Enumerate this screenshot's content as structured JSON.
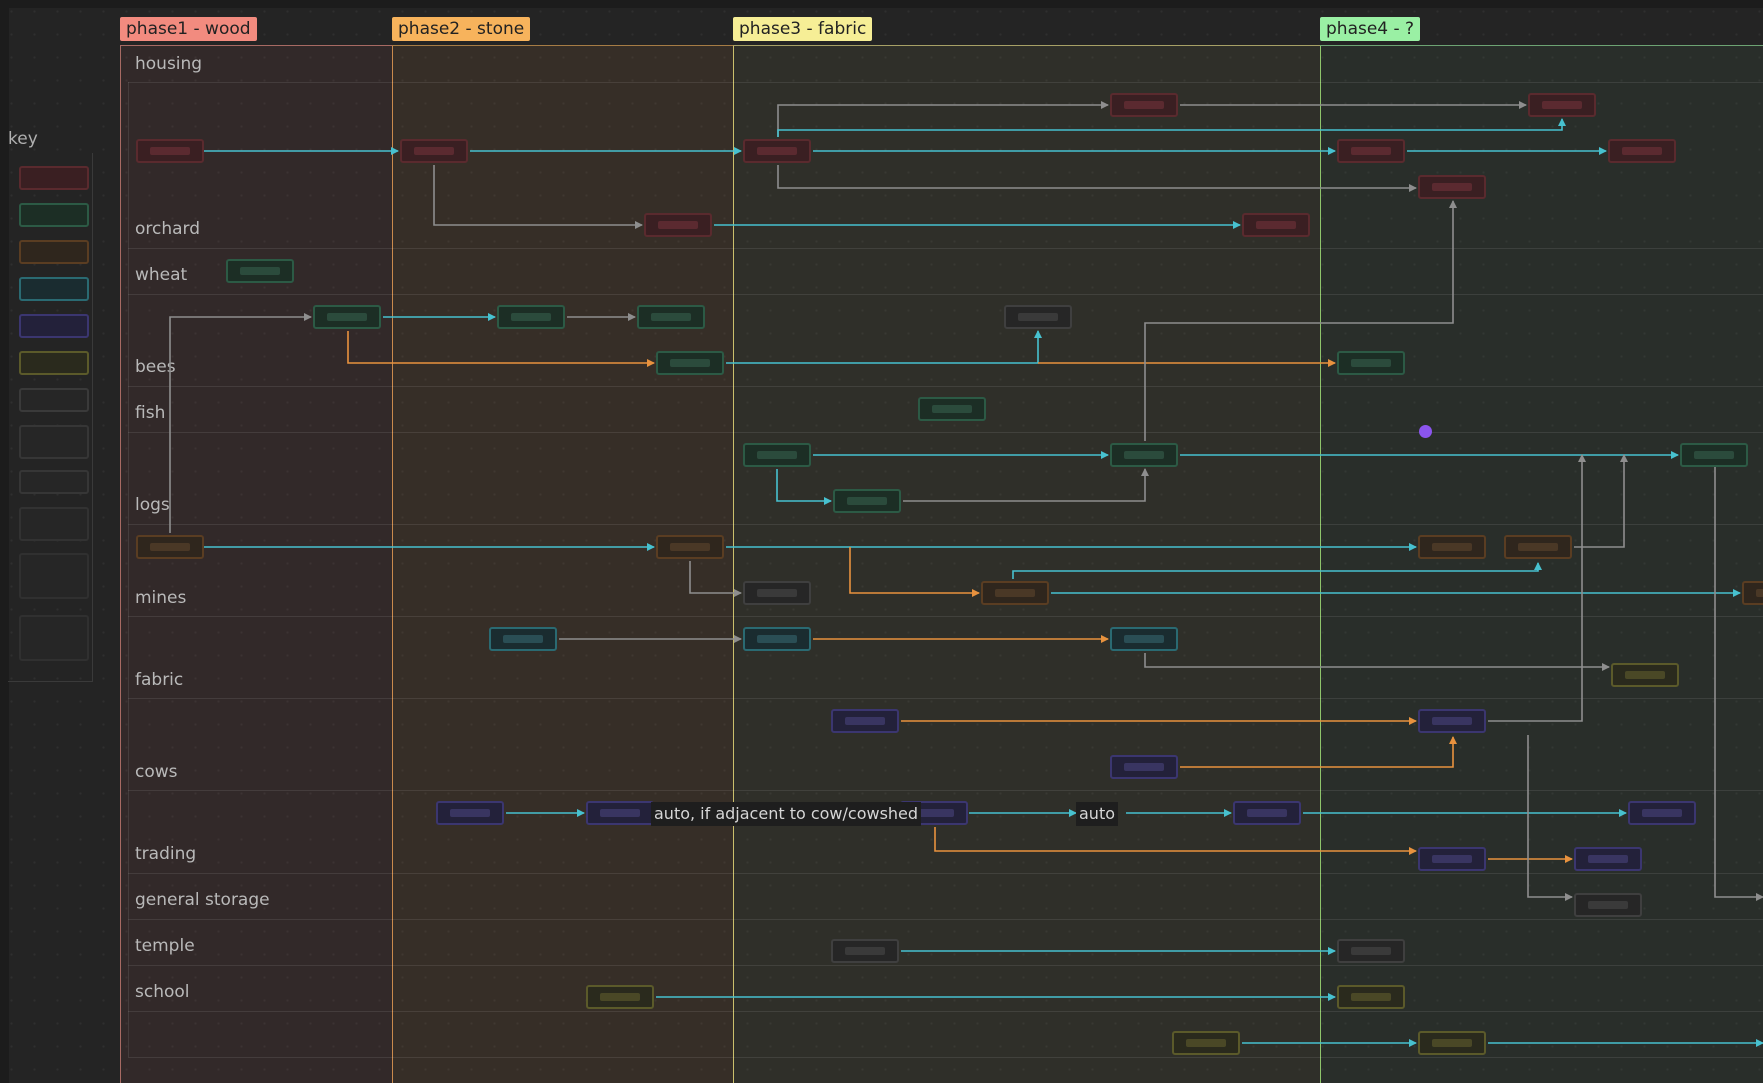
{
  "colors": {
    "teal": "#47c1cf",
    "orange": "#e8923e",
    "gray": "#8e8e8e",
    "cursor": "#8b55ee",
    "phase1": "#f28b7f",
    "phase2": "#f7b35c",
    "phase3": "#f6ee96",
    "phase4": "#9af0a4"
  },
  "phases": [
    {
      "label": "phase1 - wood"
    },
    {
      "label": "phase2 - stone"
    },
    {
      "label": "phase3 - fabric"
    },
    {
      "label": "phase4 - ?"
    }
  ],
  "key": {
    "title": "key"
  },
  "lanes": [
    "housing",
    "orchard",
    "wheat",
    "bees",
    "fish",
    "logs",
    "mines",
    "fabric",
    "cows",
    "trading",
    "general storage",
    "temple",
    "school"
  ],
  "edge_labels": [
    "auto, if adjacent to cow/cowshed",
    "auto"
  ],
  "node_categories": [
    "red",
    "green",
    "brown",
    "teal",
    "purple",
    "olive",
    "gray"
  ],
  "nodes": [
    {
      "id": "h1",
      "lane": "housing",
      "cat": "red"
    },
    {
      "id": "h2",
      "lane": "housing",
      "cat": "red"
    },
    {
      "id": "h3",
      "lane": "housing",
      "cat": "red"
    },
    {
      "id": "h4",
      "lane": "housing",
      "cat": "red"
    },
    {
      "id": "h5",
      "lane": "housing",
      "cat": "red"
    },
    {
      "id": "h6",
      "lane": "housing",
      "cat": "red"
    },
    {
      "id": "h7",
      "lane": "housing",
      "cat": "red"
    },
    {
      "id": "h8",
      "lane": "housing",
      "cat": "red"
    },
    {
      "id": "o1",
      "lane": "orchard",
      "cat": "red"
    },
    {
      "id": "o2",
      "lane": "orchard",
      "cat": "red"
    },
    {
      "id": "w1",
      "lane": "wheat",
      "cat": "green"
    },
    {
      "id": "b1",
      "lane": "bees",
      "cat": "green"
    },
    {
      "id": "b2",
      "lane": "bees",
      "cat": "green"
    },
    {
      "id": "b3",
      "lane": "bees",
      "cat": "green"
    },
    {
      "id": "b4",
      "lane": "bees",
      "cat": "gray"
    },
    {
      "id": "b5",
      "lane": "bees",
      "cat": "green"
    },
    {
      "id": "b6",
      "lane": "bees",
      "cat": "green"
    },
    {
      "id": "f1",
      "lane": "fish",
      "cat": "green"
    },
    {
      "id": "l1",
      "lane": "logs",
      "cat": "green"
    },
    {
      "id": "l2",
      "lane": "logs",
      "cat": "green"
    },
    {
      "id": "l3",
      "lane": "logs",
      "cat": "green"
    },
    {
      "id": "l4",
      "lane": "logs",
      "cat": "green"
    },
    {
      "id": "m1",
      "lane": "mines",
      "cat": "brown"
    },
    {
      "id": "m2",
      "lane": "mines",
      "cat": "brown"
    },
    {
      "id": "m3",
      "lane": "mines",
      "cat": "brown"
    },
    {
      "id": "m4",
      "lane": "mines",
      "cat": "brown"
    },
    {
      "id": "m5",
      "lane": "mines",
      "cat": "gray"
    },
    {
      "id": "m6",
      "lane": "mines",
      "cat": "brown"
    },
    {
      "id": "m7",
      "lane": "mines",
      "cat": "brown"
    },
    {
      "id": "fa1",
      "lane": "fabric",
      "cat": "teal"
    },
    {
      "id": "fa2",
      "lane": "fabric",
      "cat": "teal"
    },
    {
      "id": "fa3",
      "lane": "fabric",
      "cat": "teal"
    },
    {
      "id": "fa4",
      "lane": "fabric",
      "cat": "olive"
    },
    {
      "id": "c1",
      "lane": "cows",
      "cat": "purple"
    },
    {
      "id": "c2",
      "lane": "cows",
      "cat": "purple"
    },
    {
      "id": "c3",
      "lane": "cows",
      "cat": "purple"
    },
    {
      "id": "t1",
      "lane": "trading",
      "cat": "purple"
    },
    {
      "id": "t2",
      "lane": "trading",
      "cat": "purple"
    },
    {
      "id": "t3",
      "lane": "trading",
      "cat": "purple"
    },
    {
      "id": "t4",
      "lane": "trading",
      "cat": "purple"
    },
    {
      "id": "t5",
      "lane": "trading",
      "cat": "purple"
    },
    {
      "id": "t6",
      "lane": "trading",
      "cat": "purple"
    },
    {
      "id": "t7",
      "lane": "trading",
      "cat": "purple"
    },
    {
      "id": "g1",
      "lane": "general storage",
      "cat": "gray"
    },
    {
      "id": "te1",
      "lane": "temple",
      "cat": "gray"
    },
    {
      "id": "te2",
      "lane": "temple",
      "cat": "gray"
    },
    {
      "id": "s1",
      "lane": "school",
      "cat": "olive"
    },
    {
      "id": "s2",
      "lane": "school",
      "cat": "olive"
    },
    {
      "id": "x1",
      "lane": "school",
      "cat": "olive"
    },
    {
      "id": "x2",
      "lane": "school",
      "cat": "olive"
    }
  ],
  "edges": [
    {
      "from": "h1",
      "to": "h2",
      "color": "teal"
    },
    {
      "from": "h2",
      "to": "h3",
      "color": "teal"
    },
    {
      "from": "h3",
      "to": "h4",
      "color": "teal"
    },
    {
      "from": "h4",
      "to": "h5",
      "color": "teal"
    },
    {
      "from": "h3",
      "to": "h6",
      "color": "gray"
    },
    {
      "from": "h6",
      "to": "h7",
      "color": "gray"
    },
    {
      "from": "h3",
      "to": "h7",
      "color": "teal"
    },
    {
      "from": "h3",
      "to": "h8",
      "color": "gray"
    },
    {
      "from": "h2",
      "to": "o1",
      "color": "gray"
    },
    {
      "from": "o1",
      "to": "o2",
      "color": "teal"
    },
    {
      "from": "b1",
      "to": "b2",
      "color": "teal"
    },
    {
      "from": "b2",
      "to": "b3",
      "color": "gray"
    },
    {
      "from": "b1",
      "to": "b5",
      "color": "orange"
    },
    {
      "from": "b5",
      "to": "b4",
      "color": "teal"
    },
    {
      "from": "b5",
      "to": "b6",
      "color": "orange"
    },
    {
      "from": "m1",
      "to": "b1",
      "color": "gray"
    },
    {
      "from": "l1",
      "to": "l3",
      "color": "teal"
    },
    {
      "from": "l1",
      "to": "l2",
      "color": "teal"
    },
    {
      "from": "l2",
      "to": "l3",
      "color": "gray"
    },
    {
      "from": "l3",
      "to": "l4",
      "color": "teal"
    },
    {
      "from": "l3",
      "to": "h8",
      "color": "gray"
    },
    {
      "from": "m1",
      "to": "m2",
      "color": "teal"
    },
    {
      "from": "m2",
      "to": "m3",
      "color": "teal"
    },
    {
      "from": "m2",
      "to": "m5",
      "color": "gray"
    },
    {
      "from": "m2",
      "to": "m6",
      "color": "orange"
    },
    {
      "from": "m6",
      "to": "m7",
      "color": "teal"
    },
    {
      "from": "m6",
      "to": "m4",
      "color": "teal"
    },
    {
      "from": "m4",
      "to": "l4",
      "color": "gray"
    },
    {
      "from": "fa1",
      "to": "fa2",
      "color": "gray"
    },
    {
      "from": "fa2",
      "to": "fa3",
      "color": "orange"
    },
    {
      "from": "fa3",
      "to": "fa4",
      "color": "gray"
    },
    {
      "from": "c1",
      "to": "c3",
      "color": "orange"
    },
    {
      "from": "c2",
      "to": "c3",
      "color": "orange"
    },
    {
      "from": "c3",
      "to": "l4",
      "color": "gray"
    },
    {
      "from": "t1",
      "to": "t2",
      "color": "teal"
    },
    {
      "from": "t2",
      "to": "t3",
      "color": "teal",
      "label": "auto, if adjacent to cow/cowshed"
    },
    {
      "from": "t3",
      "to": "t4",
      "color": "teal",
      "label": "auto"
    },
    {
      "from": "t4",
      "to": "t5",
      "color": "teal"
    },
    {
      "from": "t3",
      "to": "t6",
      "color": "orange"
    },
    {
      "from": "t6",
      "to": "t7",
      "color": "orange"
    },
    {
      "from": "c3",
      "to": "g1",
      "color": "gray"
    },
    {
      "from": "te1",
      "to": "te2",
      "color": "teal"
    },
    {
      "from": "s1",
      "to": "s2",
      "color": "teal"
    },
    {
      "from": "x1",
      "to": "x2",
      "color": "teal"
    }
  ]
}
